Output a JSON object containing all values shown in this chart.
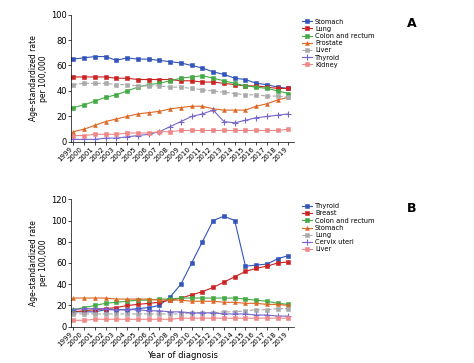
{
  "years": [
    1999,
    2000,
    2001,
    2002,
    2003,
    2004,
    2005,
    2006,
    2007,
    2008,
    2009,
    2010,
    2011,
    2012,
    2013,
    2014,
    2015,
    2016,
    2017,
    2018,
    2019
  ],
  "panel_A": {
    "Stomach": [
      65,
      66,
      67,
      67,
      64,
      66,
      65,
      65,
      64,
      63,
      62,
      60,
      58,
      55,
      53,
      50,
      49,
      46,
      45,
      43,
      42
    ],
    "Lung": [
      51,
      51,
      51,
      51,
      50,
      50,
      49,
      49,
      49,
      49,
      48,
      48,
      47,
      47,
      46,
      45,
      44,
      44,
      43,
      42,
      42
    ],
    "Colon and rectum": [
      27,
      29,
      32,
      35,
      37,
      40,
      43,
      45,
      46,
      48,
      50,
      51,
      52,
      50,
      48,
      46,
      44,
      43,
      42,
      40,
      38
    ],
    "Prostate": [
      8,
      10,
      13,
      16,
      18,
      20,
      22,
      23,
      24,
      26,
      27,
      28,
      28,
      26,
      25,
      25,
      25,
      28,
      30,
      33,
      35
    ],
    "Liver": [
      45,
      46,
      46,
      46,
      45,
      45,
      44,
      44,
      44,
      43,
      43,
      42,
      41,
      40,
      39,
      38,
      37,
      37,
      36,
      36,
      35
    ],
    "Thyroid": [
      2,
      2,
      2,
      3,
      3,
      4,
      5,
      6,
      8,
      12,
      16,
      20,
      22,
      25,
      16,
      15,
      17,
      19,
      20,
      21,
      22
    ],
    "Kidney": [
      5,
      5,
      6,
      6,
      6,
      7,
      7,
      7,
      8,
      8,
      9,
      9,
      9,
      9,
      9,
      9,
      9,
      9,
      9,
      9,
      10
    ]
  },
  "panel_A_colors": {
    "Stomach": "#3355bb",
    "Lung": "#cc2222",
    "Colon and rectum": "#44aa44",
    "Prostate": "#dd6622",
    "Liver": "#aaaaaa",
    "Thyroid": "#7766cc",
    "Kidney": "#ee8888"
  },
  "panel_A_linestyles": {
    "Stomach": "-",
    "Lung": "-",
    "Colon and rectum": "-",
    "Prostate": "-",
    "Liver": "--",
    "Thyroid": "-",
    "Kidney": "-"
  },
  "panel_A_markers": {
    "Stomach": "s",
    "Lung": "s",
    "Colon and rectum": "s",
    "Prostate": "^",
    "Liver": "s",
    "Thyroid": "+",
    "Kidney": "s"
  },
  "panel_A_ylim": [
    0,
    100
  ],
  "panel_A_yticks": [
    0,
    20,
    40,
    60,
    80,
    100
  ],
  "panel_B": {
    "Thyroid": [
      14,
      14,
      14,
      16,
      16,
      16,
      17,
      18,
      20,
      28,
      40,
      60,
      80,
      100,
      104,
      100,
      57,
      58,
      59,
      64,
      67
    ],
    "Breast": [
      14,
      15,
      16,
      17,
      18,
      20,
      21,
      22,
      23,
      25,
      27,
      30,
      33,
      37,
      42,
      47,
      52,
      55,
      57,
      60,
      61
    ],
    "Colon and rectum": [
      16,
      18,
      20,
      22,
      23,
      24,
      25,
      25,
      26,
      26,
      27,
      27,
      27,
      27,
      27,
      27,
      26,
      25,
      24,
      22,
      21
    ],
    "Stomach": [
      27,
      27,
      27,
      27,
      26,
      26,
      26,
      26,
      25,
      25,
      25,
      24,
      24,
      24,
      23,
      23,
      22,
      22,
      21,
      21,
      20
    ],
    "Lung": [
      12,
      12,
      12,
      12,
      12,
      12,
      12,
      12,
      12,
      12,
      12,
      13,
      13,
      13,
      14,
      14,
      15,
      16,
      16,
      17,
      17
    ],
    "Cervix uteri": [
      16,
      17,
      17,
      17,
      16,
      16,
      16,
      15,
      15,
      14,
      14,
      13,
      13,
      13,
      12,
      12,
      12,
      11,
      11,
      10,
      10
    ],
    "Liver": [
      6,
      6,
      7,
      7,
      7,
      7,
      7,
      7,
      7,
      7,
      8,
      8,
      8,
      8,
      8,
      8,
      8,
      8,
      8,
      8,
      8
    ]
  },
  "panel_B_colors": {
    "Thyroid": "#3355bb",
    "Breast": "#cc2222",
    "Colon and rectum": "#44aa44",
    "Stomach": "#dd6622",
    "Lung": "#aaaaaa",
    "Cervix uteri": "#7766cc",
    "Liver": "#ee8888"
  },
  "panel_B_linestyles": {
    "Thyroid": "-",
    "Breast": "-",
    "Colon and rectum": "-",
    "Stomach": "-",
    "Lung": "--",
    "Cervix uteri": "-",
    "Liver": "-"
  },
  "panel_B_markers": {
    "Thyroid": "s",
    "Breast": "s",
    "Colon and rectum": "s",
    "Stomach": "^",
    "Lung": "s",
    "Cervix uteri": "+",
    "Liver": "s"
  },
  "panel_B_ylim": [
    0,
    120
  ],
  "panel_B_yticks": [
    0,
    20,
    40,
    60,
    80,
    100,
    120
  ],
  "ylabel": "Age-standardized rate\nper 100,000",
  "xlabel": "Year of diagnosis"
}
